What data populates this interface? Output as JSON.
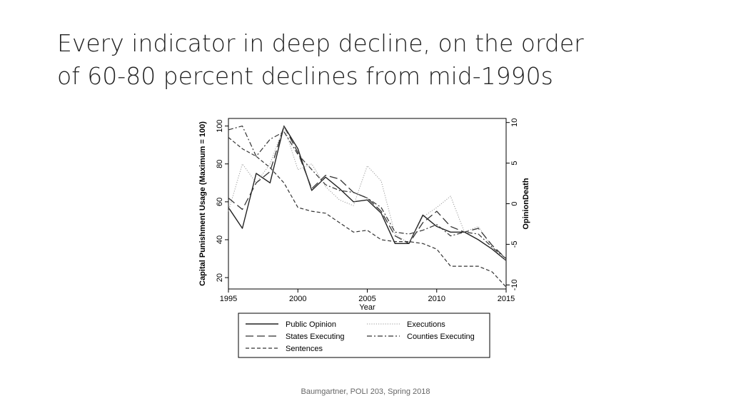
{
  "slide": {
    "title_line1": "Every indicator in deep decline, on the order",
    "title_line2": "of 60-80 percent declines from mid-1990s",
    "footer": "Baumgartner, POLI 203, Spring 2018"
  },
  "chart_data": {
    "type": "line",
    "xlabel": "Year",
    "ylabel": "Capital Punishment Usage (Maximum = 100)",
    "y2label": "OpinionDeath",
    "xlim": [
      1995,
      2015
    ],
    "ylim": [
      14,
      104
    ],
    "y2lim": [
      -10.5,
      10.5
    ],
    "xticks": [
      1995,
      2000,
      2005,
      2010,
      2015
    ],
    "yticks": [
      20,
      40,
      60,
      80,
      100
    ],
    "y2ticks": [
      -10,
      -5,
      0,
      5,
      10
    ],
    "grid": false,
    "legend_position": "bottom",
    "x": [
      1995,
      1996,
      1997,
      1998,
      1999,
      2000,
      2001,
      2002,
      2003,
      2004,
      2005,
      2006,
      2007,
      2008,
      2009,
      2010,
      2011,
      2012,
      2013,
      2014,
      2015
    ],
    "series": [
      {
        "name": "Public Opinion",
        "style": "solid",
        "values": [
          57,
          46,
          75,
          70,
          100,
          88,
          66,
          73,
          67,
          60,
          61,
          54,
          38,
          38,
          53,
          47,
          44,
          44,
          40,
          35,
          29
        ]
      },
      {
        "name": "Executions",
        "style": "dotted",
        "values": [
          55,
          80,
          70,
          80,
          100,
          77,
          80,
          68,
          61,
          58,
          79,
          71,
          43,
          38,
          52,
          57,
          63,
          44,
          47,
          36,
          29
        ]
      },
      {
        "name": "States Executing",
        "style": "longdash",
        "values": [
          62,
          56,
          70,
          76,
          100,
          86,
          67,
          74,
          72,
          65,
          62,
          55,
          42,
          38,
          49,
          55,
          47,
          44,
          46,
          37,
          30
        ]
      },
      {
        "name": "Counties Executing",
        "style": "dashdot",
        "values": [
          98,
          100,
          84,
          93,
          97,
          85,
          77,
          69,
          66,
          65,
          62,
          57,
          44,
          43,
          45,
          48,
          42,
          44,
          43,
          36,
          30
        ]
      },
      {
        "name": "Sentences",
        "style": "shortdash",
        "values": [
          94,
          88,
          84,
          78,
          70,
          57,
          55,
          54,
          49,
          44,
          45,
          40,
          39,
          39,
          38,
          35,
          26,
          26,
          26,
          23,
          15
        ]
      }
    ]
  }
}
